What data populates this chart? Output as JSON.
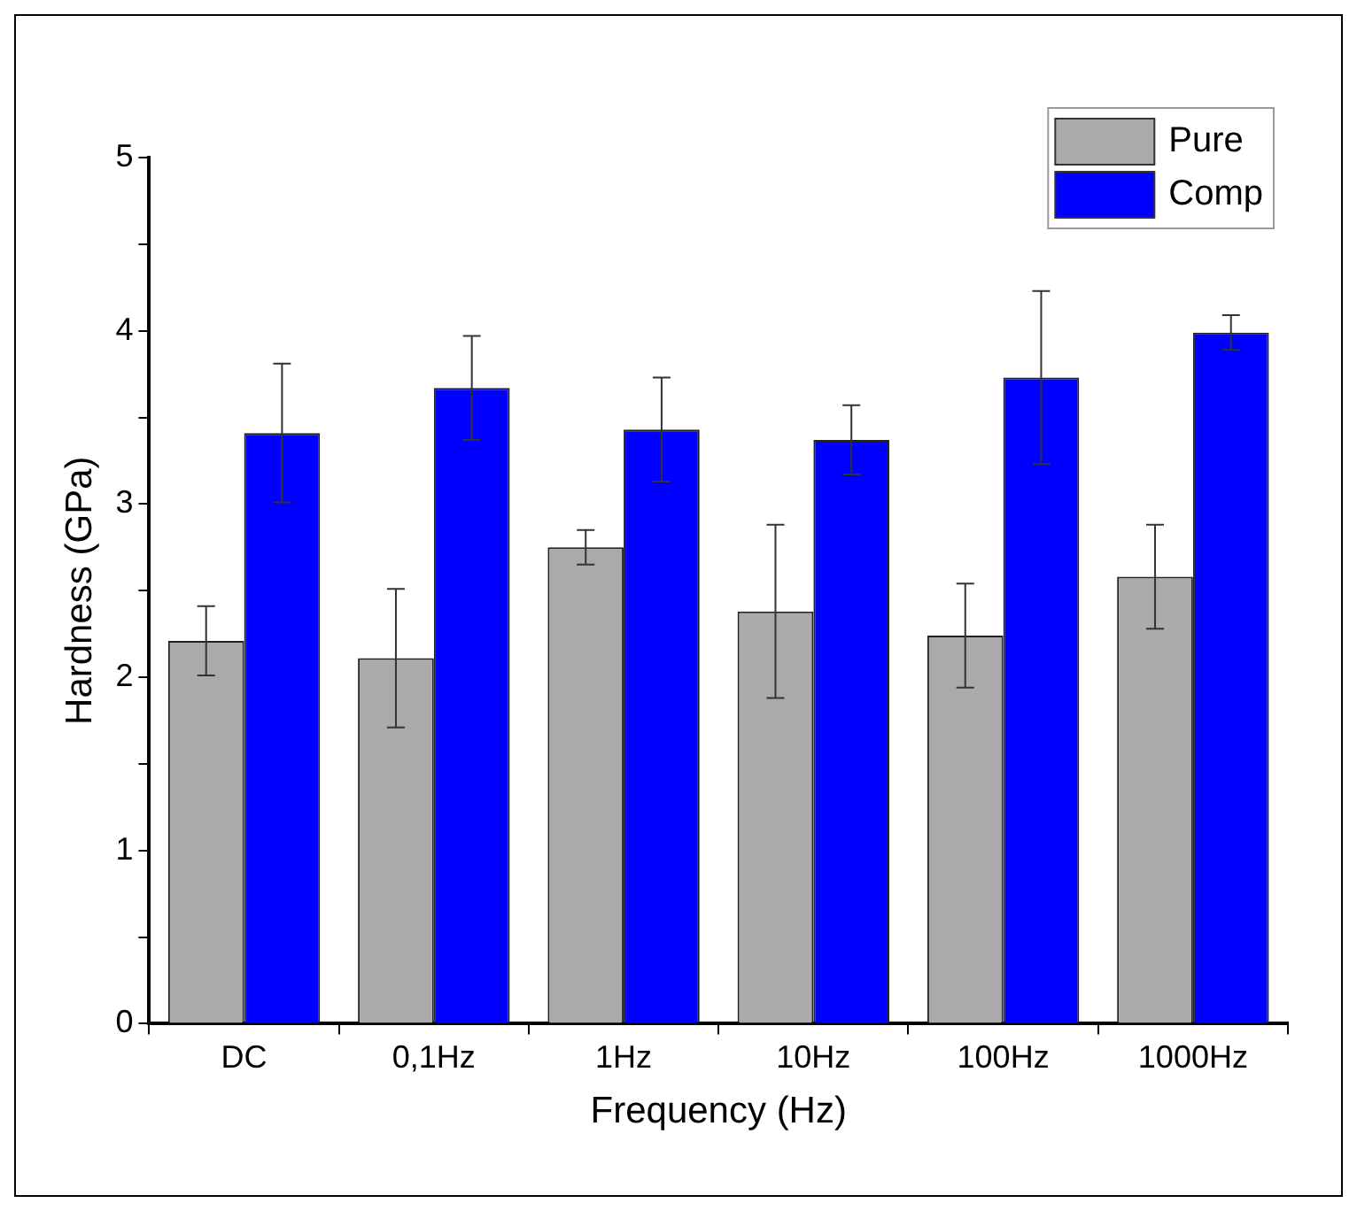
{
  "chart_data": {
    "type": "bar",
    "xlabel": "Frequency (Hz)",
    "ylabel": "Hardness (GPa)",
    "categories": [
      "DC",
      "0,1Hz",
      "1Hz",
      "10Hz",
      "100Hz",
      "1000Hz"
    ],
    "series": [
      {
        "name": "Pure",
        "color": "#aaaaaa",
        "values": [
          2.21,
          2.11,
          2.75,
          2.38,
          2.24,
          2.58
        ],
        "errors": [
          0.2,
          0.4,
          0.1,
          0.5,
          0.3,
          0.3
        ]
      },
      {
        "name": "Comp",
        "color": "#0000ff",
        "values": [
          3.41,
          3.67,
          3.43,
          3.37,
          3.73,
          3.99
        ],
        "errors": [
          0.4,
          0.3,
          0.3,
          0.2,
          0.5,
          0.1
        ]
      }
    ],
    "ylim": [
      0,
      5
    ],
    "yticks": [
      0,
      {
        "value": 0.5,
        "label": null
      },
      1,
      {
        "value": 1.5,
        "label": null
      },
      2,
      {
        "value": 2.5,
        "label": null
      },
      3,
      {
        "value": 3.5,
        "label": null
      },
      4,
      {
        "value": 4.5,
        "label": null
      },
      5
    ],
    "grid": false,
    "legend": "top right"
  }
}
